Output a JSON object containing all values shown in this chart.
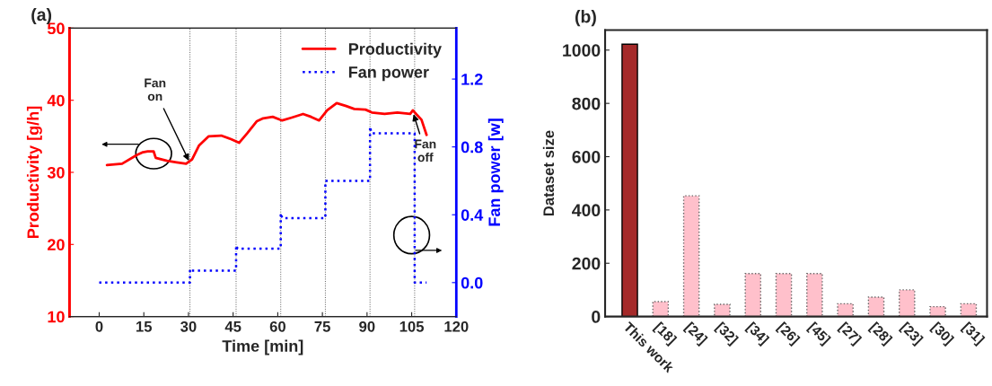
{
  "chart_data": [
    {
      "type": "line",
      "title": "(a)",
      "xlabel": "Time [min]",
      "ylabel": "Productivity [g/h]",
      "y2label": "Fan power [w]",
      "xlim": [
        -10,
        120
      ],
      "xticks": [
        0,
        15,
        30,
        45,
        60,
        75,
        90,
        105,
        120
      ],
      "ylim": [
        10,
        50
      ],
      "yticks": [
        10,
        20,
        30,
        40,
        50
      ],
      "y2lim": [
        -0.2,
        1.5
      ],
      "y2ticks": [
        {
          "value": 0,
          "label": "0.0"
        },
        0.4,
        0.8,
        1.2
      ],
      "legend": "top right",
      "grid": false,
      "series": [
        {
          "name": "Productivity",
          "color": "#ff0000",
          "line_style": "solid",
          "x": [
            2.6,
            7.7,
            12.6,
            14.7,
            16.3,
            18.3,
            19,
            22.8,
            26,
            29.2,
            31.2,
            33.5,
            36.8,
            41,
            44.3,
            47,
            49.7,
            53,
            55.1,
            58.3,
            61.5,
            64.7,
            68.5,
            71.2,
            73.9,
            76.6,
            79.8,
            83,
            85.7,
            89.5,
            91.6,
            95.9,
            100.2,
            104.5,
            105.4,
            106.7,
            108.3,
            110
          ],
          "values": [
            31.0,
            31.2,
            32.4,
            32.8,
            32.9,
            32.9,
            32.0,
            31.6,
            31.4,
            31.2,
            31.8,
            33.7,
            35.0,
            35.1,
            34.6,
            34.1,
            35.4,
            37.1,
            37.5,
            37.7,
            37.2,
            37.6,
            38.1,
            37.7,
            37.2,
            38.6,
            39.6,
            39.2,
            38.8,
            38.7,
            38.3,
            38.1,
            38.3,
            38.1,
            38.6,
            38.0,
            37.3,
            35.2
          ]
        },
        {
          "name": "Fan power",
          "color": "#0000ff",
          "line_style": "dotted",
          "axis": "y2",
          "x": [
            0,
            30.5,
            30.5,
            31,
            46,
            46,
            46.5,
            61,
            61,
            61.5,
            76,
            76,
            91,
            91,
            91.5,
            106,
            106,
            110
          ],
          "values": [
            0,
            0,
            0.08,
            0.07,
            0.07,
            0.22,
            0.2,
            0.2,
            0.41,
            0.38,
            0.38,
            0.6,
            0.6,
            0.92,
            0.88,
            0.88,
            0,
            0
          ]
        }
      ],
      "ref_lines": [
        {
          "axis": "x",
          "value": 30.5,
          "color": "#555555",
          "line_style": "dotted"
        },
        {
          "axis": "x",
          "value": 46,
          "color": "#555555",
          "line_style": "dotted"
        },
        {
          "axis": "x",
          "value": 61,
          "color": "#555555",
          "line_style": "dotted"
        },
        {
          "axis": "x",
          "value": 76,
          "color": "#555555",
          "line_style": "dotted"
        },
        {
          "axis": "x",
          "value": 91,
          "color": "#555555",
          "line_style": "dotted"
        },
        {
          "axis": "x",
          "value": 106,
          "color": "#555555",
          "line_style": "dotted"
        }
      ],
      "annotations": [
        {
          "text": "Fan\non",
          "x": 30.5,
          "y": 31.3
        },
        {
          "text": "Fan\noff",
          "x": 105.4,
          "y": 38.4
        }
      ]
    },
    {
      "type": "bar",
      "title": "(b)",
      "ylabel": "Dataset size",
      "categories": [
        "This work",
        "[18]",
        "[24]",
        "[32]",
        "[34]",
        "[26]",
        "[45]",
        "[27]",
        "[28]",
        "[23]",
        "[30]",
        "[31]"
      ],
      "values": [
        1022,
        56,
        453,
        46,
        161,
        161,
        161,
        48,
        73,
        100,
        37,
        48
      ],
      "colors": [
        "#a52a2a",
        "#ffc0cb",
        "#ffc0cb",
        "#ffc0cb",
        "#ffc0cb",
        "#ffc0cb",
        "#ffc0cb",
        "#ffc0cb",
        "#ffc0cb",
        "#ffc0cb",
        "#ffc0cb",
        "#ffc0cb"
      ],
      "ylim": [
        0,
        1075
      ],
      "yticks": [
        0,
        200,
        400,
        600,
        800,
        1000
      ],
      "grid": false
    }
  ]
}
